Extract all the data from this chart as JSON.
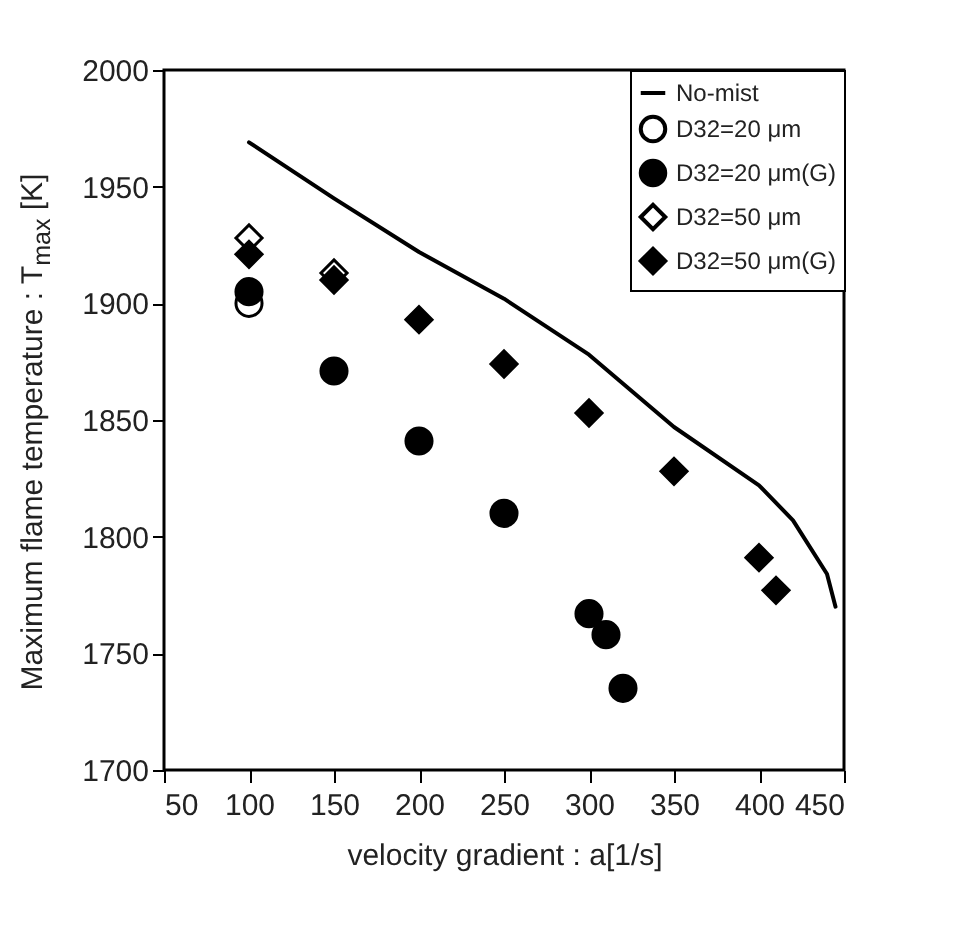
{
  "chart_data": {
    "type": "scatter",
    "xlabel": "velocity gradient : a[1/s]",
    "ylabel": "Maximum flame temperature : T$_{max}$ [K]",
    "xlim": [
      50,
      450
    ],
    "xticks": [
      50,
      100,
      150,
      200,
      250,
      300,
      350,
      400,
      450
    ],
    "ylim": [
      1700,
      2000
    ],
    "yticks": [
      1700,
      1750,
      1800,
      1850,
      1900,
      1950,
      2000
    ],
    "grid": false,
    "legend": "top right",
    "series": [
      {
        "name": "No-mist",
        "type": "line",
        "color": "#000000",
        "line_style": "solid",
        "x": [
          100,
          150,
          200,
          250,
          300,
          350,
          400,
          420,
          440,
          445
        ],
        "values": [
          1969,
          1945,
          1922,
          1902,
          1878,
          1847,
          1822,
          1807,
          1784,
          1770
        ]
      },
      {
        "name": "D32=20 μm",
        "marker": "circle",
        "color": "#ffffff",
        "x": [
          100
        ],
        "values": [
          1900
        ]
      },
      {
        "name": "D32=20 μm(G)",
        "marker": "circle",
        "color": "#000000",
        "x": [
          100,
          150,
          200,
          250,
          300,
          310,
          320
        ],
        "values": [
          1905,
          1871,
          1841,
          1810,
          1767,
          1758,
          1735
        ]
      },
      {
        "name": "D32=50 μm",
        "marker": "diamond",
        "color": "#ffffff",
        "x": [
          100,
          150
        ],
        "values": [
          1928,
          1913
        ]
      },
      {
        "name": "D32=50 μm(G)",
        "marker": "diamond",
        "color": "#000000",
        "x": [
          100,
          150,
          200,
          250,
          300,
          350,
          400,
          410
        ],
        "values": [
          1921,
          1910,
          1893,
          1874,
          1853,
          1828,
          1791,
          1777
        ]
      }
    ]
  }
}
